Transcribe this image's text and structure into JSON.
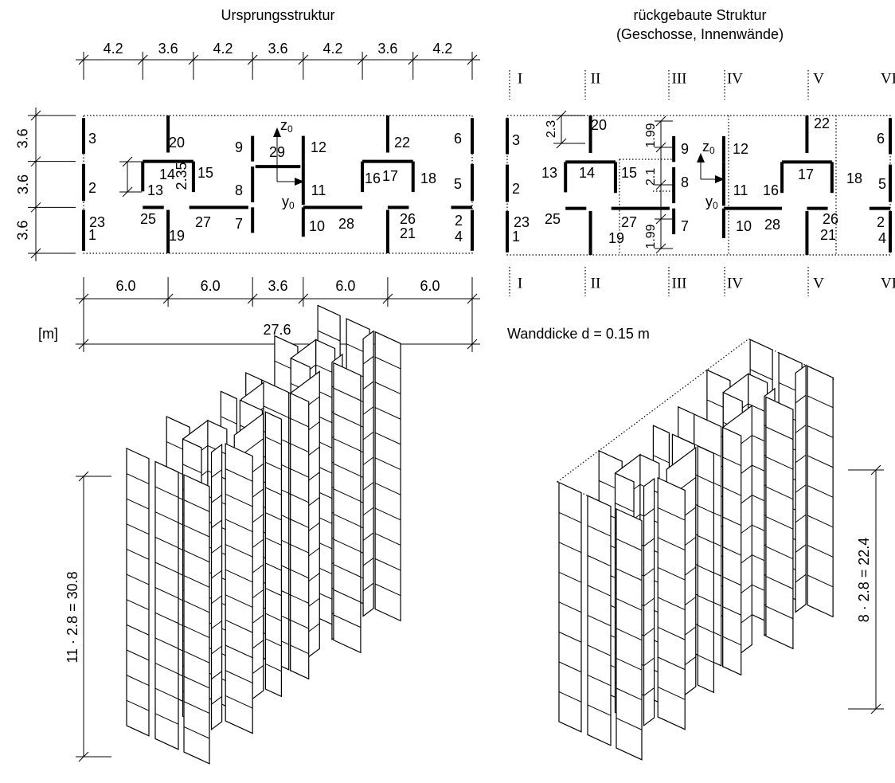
{
  "left_plan": {
    "title": "Ursprungsstruktur",
    "top_dimensions": [
      "4.2",
      "3.6",
      "4.2",
      "3.6",
      "4.2",
      "3.6",
      "4.2"
    ],
    "side_dimensions": [
      "3.6",
      "3.6",
      "3.6"
    ],
    "bottom_dimensions": [
      "6.0",
      "6.0",
      "3.6",
      "6.0",
      "6.0"
    ],
    "total_dimension": "27.6",
    "unit": "[m]",
    "opening_dimension": "2.35",
    "axis_labels": {
      "z": "z",
      "y": "y",
      "subscript": "0"
    },
    "wall_labels": [
      "3",
      "20",
      "9",
      "12",
      "22",
      "6",
      "14",
      "15",
      "13",
      "2",
      "8",
      "11",
      "16",
      "17",
      "18",
      "5",
      "23",
      "25",
      "27",
      "7",
      "10",
      "28",
      "26",
      "2",
      "1",
      "19",
      "21",
      "4",
      "29"
    ]
  },
  "right_plan": {
    "title_lines": [
      "rückgebaute Struktur",
      "(Geschosse, Innenwände)"
    ],
    "axis_labels_top": [
      "I",
      "II",
      "III",
      "IV",
      "V",
      "VI"
    ],
    "axis_labels_bottom": [
      "I",
      "II",
      "III",
      "IV",
      "V",
      "VI"
    ],
    "dimensions": [
      "2.3",
      "1.99",
      "2.1",
      "1.99"
    ],
    "axis_labels": {
      "z": "z",
      "y": "y",
      "subscript": "0"
    },
    "note": "Wanddicke d = 0.15 m",
    "wall_labels": [
      "20",
      "22",
      "3",
      "6",
      "9",
      "12",
      "13",
      "14",
      "15",
      "2",
      "8",
      "11",
      "16",
      "17",
      "18",
      "5",
      "23",
      "25",
      "27",
      "7",
      "10",
      "28",
      "26",
      "2",
      "1",
      "19",
      "21",
      "4"
    ]
  },
  "elevation_left": {
    "height_label": "11 · 2.8 = 30.8"
  },
  "elevation_right": {
    "height_label": "8 · 2.8 = 22.4"
  }
}
